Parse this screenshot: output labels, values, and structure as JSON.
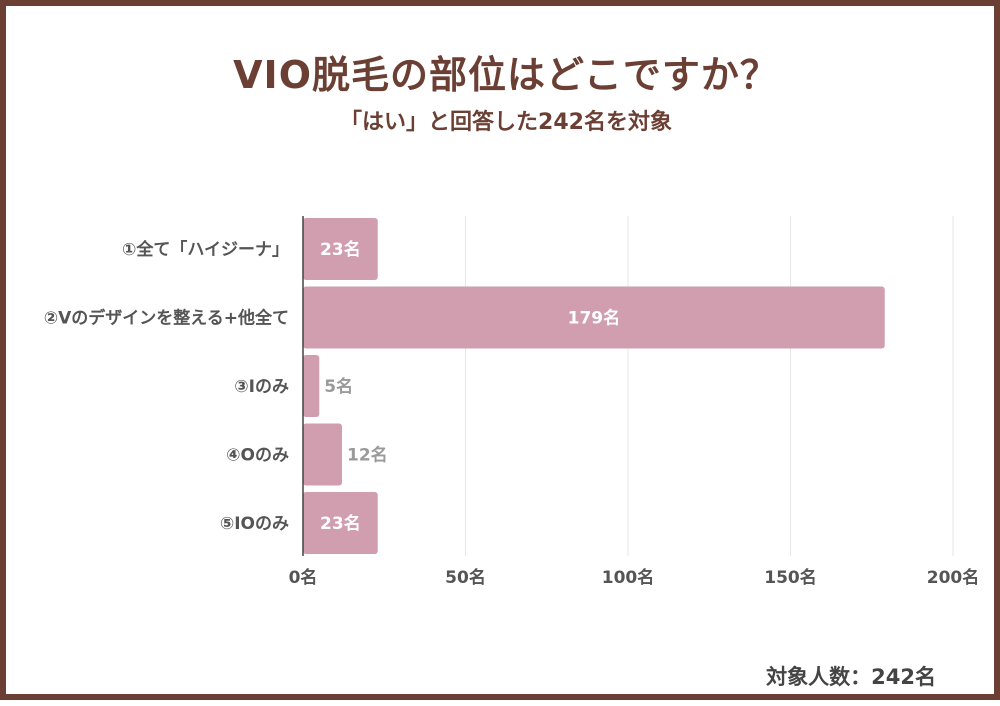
{
  "title": "VIO脱毛の部位はどこですか？",
  "subtitle": "「はい」と回答した242名を対象",
  "footer": "対象人数：242名",
  "colors": {
    "frame": "#6b3f33",
    "title": "#6b3f33",
    "bar": "#d09eae",
    "label_inside": "#ffffff",
    "label_outside": "#9a9a9a",
    "grid": "#e6e6e6",
    "axis": "#444444"
  },
  "chart_data": {
    "type": "bar",
    "orientation": "horizontal",
    "title": "VIO脱毛の部位はどこですか？",
    "subtitle": "「はい」と回答した242名を対象",
    "categories": [
      "①全て「ハイジーナ」",
      "②Vのデザインを整える+他全て",
      "③Iのみ",
      "④Oのみ",
      "⑤IOのみ"
    ],
    "values": [
      23,
      179,
      5,
      12,
      23
    ],
    "value_labels": [
      "23名",
      "179名",
      "5名",
      "12名",
      "23名"
    ],
    "label_position": [
      "inside",
      "inside",
      "outside",
      "outside",
      "inside"
    ],
    "xlim": [
      0,
      200
    ],
    "xticks": [
      0,
      50,
      100,
      150,
      200
    ],
    "xtick_labels": [
      "0名",
      "50名",
      "100名",
      "150名",
      "200名"
    ],
    "grid": true
  }
}
